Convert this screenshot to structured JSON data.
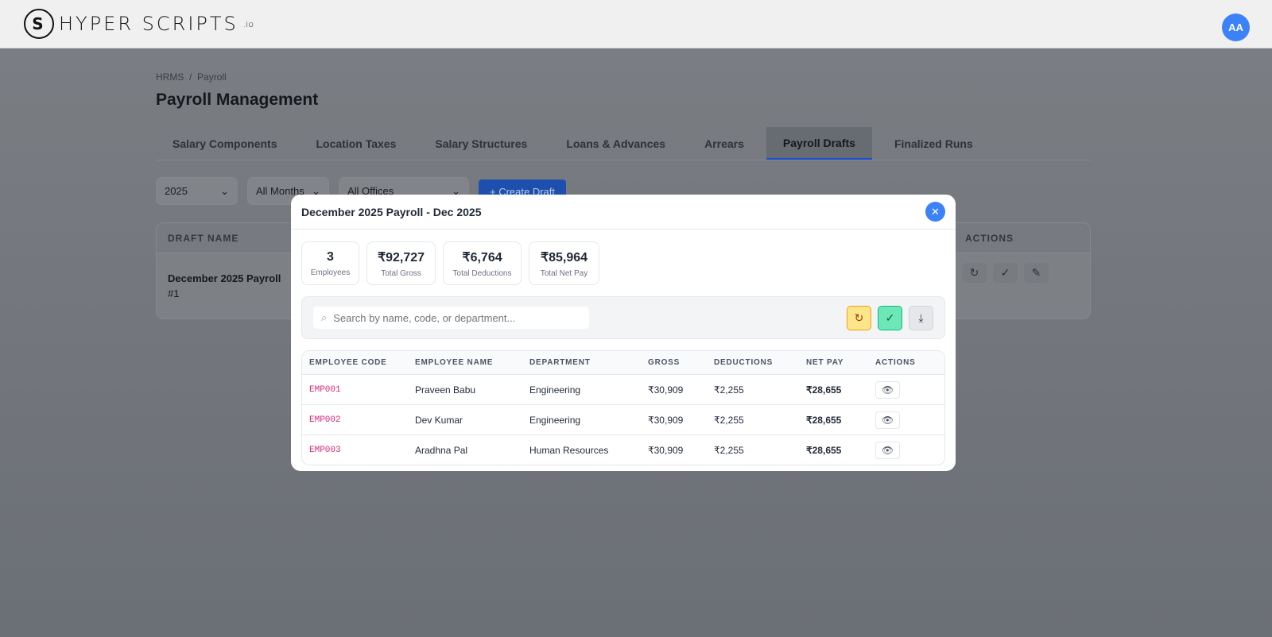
{
  "header": {
    "logo_text": "HYPER SCRIPTS",
    "logo_suffix": ".io",
    "avatar": "AA"
  },
  "breadcrumb": [
    "HRMS",
    "/",
    "Payroll"
  ],
  "page_title": "Payroll Management",
  "tabs": [
    "Salary Components",
    "Location Taxes",
    "Salary Structures",
    "Loans & Advances",
    "Arrears",
    "Payroll Drafts",
    "Finalized Runs"
  ],
  "active_tab": "Payroll Drafts",
  "filters": {
    "year": "2025",
    "month": "All Months",
    "office": "All Offices",
    "create_label": "+ Create Draft"
  },
  "drafts_table": {
    "headers": [
      "DRAFT NAME",
      "ACTIONS"
    ],
    "rows": [
      {
        "name": "December 2025 Payroll",
        "sub": "#1"
      }
    ]
  },
  "modal": {
    "title": "December 2025 Payroll - Dec 2025",
    "stats": [
      {
        "value": "3",
        "label": "Employees"
      },
      {
        "value": "₹92,727",
        "label": "Total Gross"
      },
      {
        "value": "₹6,764",
        "label": "Total Deductions"
      },
      {
        "value": "₹85,964",
        "label": "Total Net Pay"
      }
    ],
    "search_placeholder": "Search by name, code, or department...",
    "headers": [
      "EMPLOYEE CODE",
      "EMPLOYEE NAME",
      "DEPARTMENT",
      "GROSS",
      "DEDUCTIONS",
      "NET PAY",
      "ACTIONS"
    ],
    "rows": [
      {
        "code": "EMP001",
        "name": "Praveen Babu",
        "dept": "Engineering",
        "gross": "₹30,909",
        "ded": "₹2,255",
        "net": "₹28,655"
      },
      {
        "code": "EMP002",
        "name": "Dev Kumar",
        "dept": "Engineering",
        "gross": "₹30,909",
        "ded": "₹2,255",
        "net": "₹28,655"
      },
      {
        "code": "EMP003",
        "name": "Aradhna Pal",
        "dept": "Human Resources",
        "gross": "₹30,909",
        "ded": "₹2,255",
        "net": "₹28,655"
      }
    ]
  }
}
